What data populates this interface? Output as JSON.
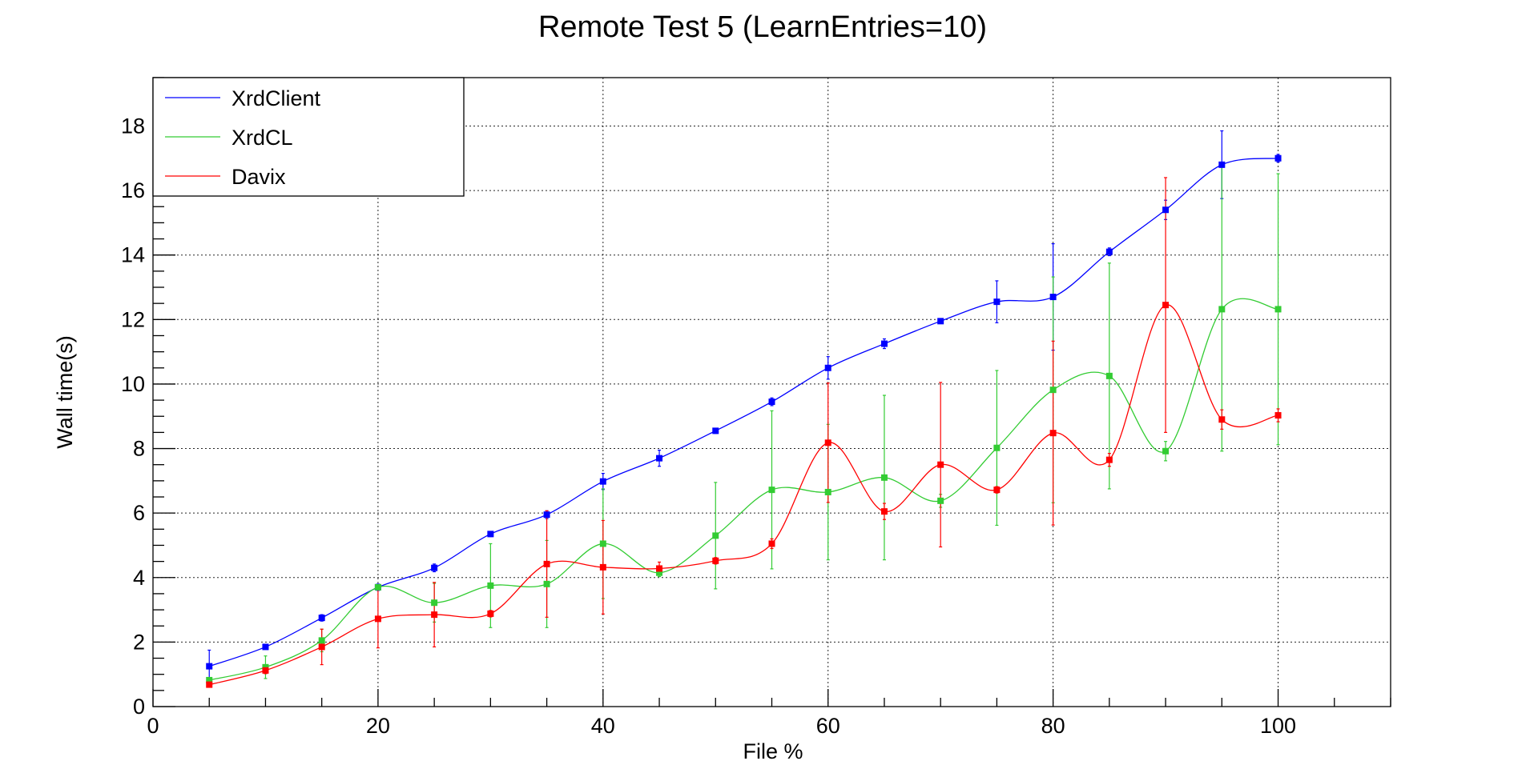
{
  "chart_data": {
    "type": "line",
    "title": "Remote Test 5 (LearnEntries=10)",
    "xlabel": "File %",
    "ylabel": "Wall time(s)",
    "xlim": [
      0,
      110
    ],
    "ylim": [
      0,
      19.5
    ],
    "xticks": [
      0,
      20,
      40,
      60,
      80,
      100
    ],
    "yticks": [
      0,
      2,
      4,
      6,
      8,
      10,
      12,
      14,
      16,
      18
    ],
    "grid": true,
    "legend_position": "top-left",
    "x": [
      5,
      10,
      15,
      20,
      25,
      30,
      35,
      40,
      45,
      50,
      55,
      60,
      65,
      70,
      75,
      80,
      85,
      90,
      95,
      100
    ],
    "series": [
      {
        "name": "XrdClient",
        "color": "#0000ff",
        "values": [
          1.25,
          1.85,
          2.75,
          3.7,
          4.3,
          5.35,
          5.95,
          6.98,
          7.7,
          8.55,
          9.45,
          10.5,
          11.25,
          11.95,
          12.55,
          12.7,
          14.1,
          15.4,
          16.8,
          17.0
        ],
        "errors": [
          0.5,
          0.06,
          0.1,
          0.1,
          0.12,
          0.08,
          0.12,
          0.25,
          0.25,
          0.08,
          0.12,
          0.35,
          0.15,
          0.06,
          0.65,
          1.65,
          0.12,
          0.3,
          1.05,
          0.12
        ]
      },
      {
        "name": "XrdCL",
        "color": "#33cc33",
        "values": [
          0.82,
          1.22,
          2.05,
          3.7,
          3.22,
          3.75,
          3.8,
          5.05,
          4.15,
          5.3,
          6.72,
          6.65,
          7.1,
          6.38,
          8.02,
          9.82,
          10.25,
          7.92,
          12.32,
          12.32
        ],
        "errors": [
          0.05,
          0.35,
          0.35,
          0.05,
          0.6,
          1.3,
          1.35,
          1.7,
          0.12,
          1.65,
          2.45,
          2.1,
          2.55,
          0.2,
          2.4,
          3.5,
          3.5,
          0.3,
          4.4,
          4.2
        ]
      },
      {
        "name": "Davix",
        "color": "#ff0000",
        "values": [
          0.68,
          1.12,
          1.85,
          2.72,
          2.85,
          2.88,
          4.42,
          4.32,
          4.28,
          4.52,
          5.05,
          8.18,
          6.05,
          7.5,
          6.72,
          8.48,
          7.65,
          12.45,
          8.9,
          9.03
        ],
        "errors": [
          0.08,
          0.1,
          0.55,
          0.9,
          1.0,
          0.1,
          1.65,
          1.45,
          0.2,
          0.1,
          0.15,
          1.85,
          0.25,
          2.55,
          0.1,
          2.85,
          0.2,
          3.95,
          0.3,
          0.2
        ]
      }
    ]
  }
}
